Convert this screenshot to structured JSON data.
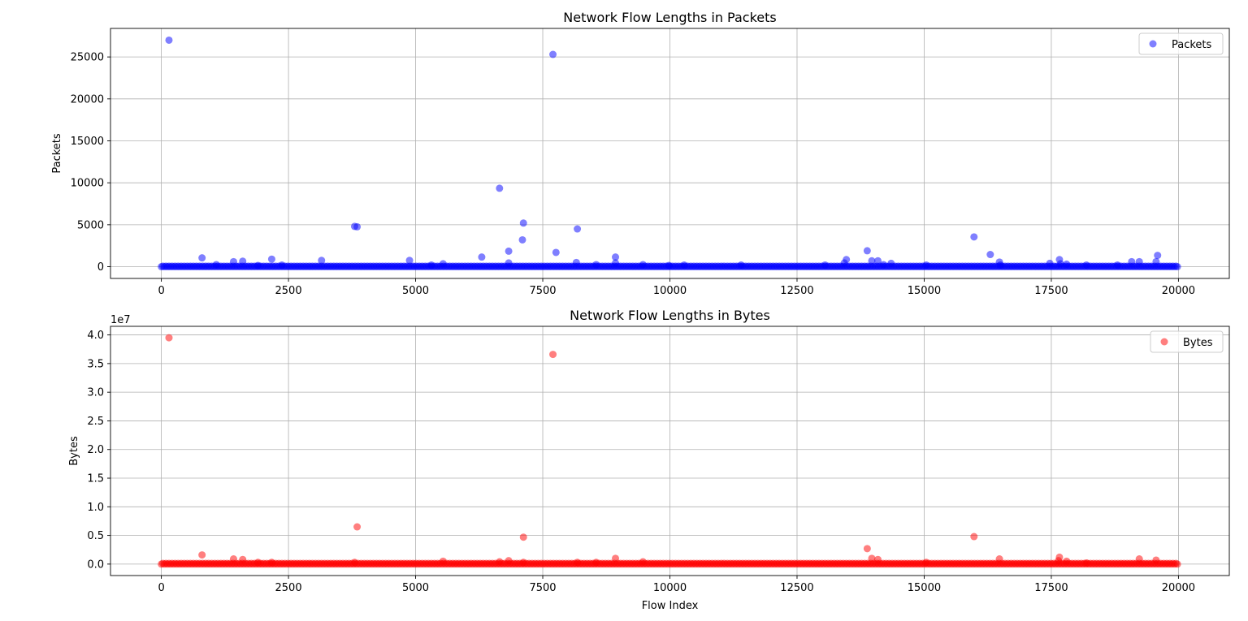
{
  "chart_data": [
    {
      "type": "scatter",
      "title": "Network Flow Lengths in Packets",
      "xlabel": "",
      "ylabel": "Packets",
      "xlim": [
        -1000,
        21000
      ],
      "ylim": [
        -1400,
        28400
      ],
      "xticks": [
        0,
        2500,
        5000,
        7500,
        10000,
        12500,
        15000,
        17500,
        20000
      ],
      "yticks": [
        0,
        5000,
        10000,
        15000,
        20000,
        25000
      ],
      "xtick_labels": [
        "0",
        "2500",
        "5000",
        "7500",
        "10000",
        "12500",
        "15000",
        "17500",
        "20000"
      ],
      "ytick_labels": [
        "0",
        "5000",
        "10000",
        "15000",
        "20000",
        "25000"
      ],
      "grid": true,
      "legend_position": "upper right",
      "series": [
        {
          "name": "Packets",
          "color": "#0000ff",
          "alpha": 0.5,
          "baseline_band": {
            "x_start": 0,
            "x_end": 20000,
            "y": 0,
            "spread": 60
          },
          "points": [
            [
              150,
              27000
            ],
            [
              7700,
              25300
            ],
            [
              6650,
              9350
            ],
            [
              7120,
              5200
            ],
            [
              3800,
              4800
            ],
            [
              3850,
              4750
            ],
            [
              8180,
              4500
            ],
            [
              15980,
              3550
            ],
            [
              7100,
              3200
            ],
            [
              13880,
              1900
            ],
            [
              6830,
              1850
            ],
            [
              7760,
              1700
            ],
            [
              16300,
              1450
            ],
            [
              19590,
              1350
            ],
            [
              800,
              1050
            ],
            [
              6300,
              1150
            ],
            [
              8930,
              1150
            ],
            [
              2170,
              900
            ],
            [
              13470,
              850
            ],
            [
              17660,
              850
            ],
            [
              3150,
              750
            ],
            [
              4880,
              750
            ],
            [
              13970,
              700
            ],
            [
              14090,
              700
            ],
            [
              1600,
              650
            ],
            [
              1420,
              600
            ],
            [
              19080,
              600
            ],
            [
              19230,
              600
            ],
            [
              19560,
              600
            ],
            [
              16480,
              550
            ],
            [
              8160,
              500
            ],
            [
              6830,
              450
            ],
            [
              8930,
              450
            ],
            [
              13430,
              450
            ],
            [
              14350,
              400
            ],
            [
              17470,
              400
            ],
            [
              5540,
              350
            ],
            [
              17680,
              350
            ],
            [
              17800,
              300
            ],
            [
              1080,
              250
            ],
            [
              2370,
              200
            ],
            [
              5310,
              200
            ],
            [
              8550,
              250
            ],
            [
              9470,
              250
            ],
            [
              10280,
              200
            ],
            [
              11400,
              200
            ],
            [
              13050,
              200
            ],
            [
              15040,
              200
            ],
            [
              18190,
              200
            ],
            [
              18800,
              200
            ],
            [
              1900,
              150
            ],
            [
              9980,
              150
            ],
            [
              14200,
              250
            ],
            [
              16500,
              200
            ]
          ]
        }
      ]
    },
    {
      "type": "scatter",
      "title": "Network Flow Lengths in Bytes",
      "xlabel": "Flow Index",
      "ylabel": "Bytes",
      "y_offset_label": "1e7",
      "xlim": [
        -1000,
        21000
      ],
      "ylim": [
        -0.2,
        4.15
      ],
      "xticks": [
        0,
        2500,
        5000,
        7500,
        10000,
        12500,
        15000,
        17500,
        20000
      ],
      "yticks": [
        0.0,
        0.5,
        1.0,
        1.5,
        2.0,
        2.5,
        3.0,
        3.5,
        4.0
      ],
      "xtick_labels": [
        "0",
        "2500",
        "5000",
        "7500",
        "10000",
        "12500",
        "15000",
        "17500",
        "20000"
      ],
      "ytick_labels": [
        "0.0",
        "0.5",
        "1.0",
        "1.5",
        "2.0",
        "2.5",
        "3.0",
        "3.5",
        "4.0"
      ],
      "grid": true,
      "legend_position": "upper right",
      "series": [
        {
          "name": "Bytes",
          "color": "#ff0000",
          "alpha": 0.5,
          "baseline_band": {
            "x_start": 0,
            "x_end": 20000,
            "y": 0,
            "spread": 0.012
          },
          "points": [
            [
              150,
              3.95
            ],
            [
              7700,
              3.66
            ],
            [
              3850,
              0.65
            ],
            [
              15980,
              0.48
            ],
            [
              7120,
              0.47
            ],
            [
              13880,
              0.27
            ],
            [
              800,
              0.16
            ],
            [
              17660,
              0.12
            ],
            [
              8930,
              0.1
            ],
            [
              13970,
              0.1
            ],
            [
              1420,
              0.09
            ],
            [
              16480,
              0.09
            ],
            [
              19230,
              0.09
            ],
            [
              1600,
              0.08
            ],
            [
              14090,
              0.08
            ],
            [
              19560,
              0.07
            ],
            [
              6830,
              0.06
            ],
            [
              17640,
              0.06
            ],
            [
              17800,
              0.05
            ],
            [
              5540,
              0.05
            ],
            [
              9470,
              0.04
            ],
            [
              6650,
              0.04
            ],
            [
              8180,
              0.03
            ],
            [
              8550,
              0.03
            ],
            [
              2170,
              0.03
            ],
            [
              1900,
              0.03
            ],
            [
              3800,
              0.03
            ],
            [
              15040,
              0.03
            ],
            [
              18190,
              0.02
            ],
            [
              7120,
              0.03
            ]
          ]
        }
      ]
    }
  ]
}
